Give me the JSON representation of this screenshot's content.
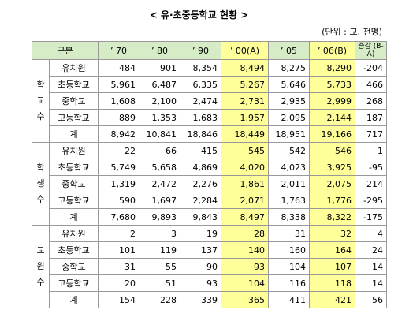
{
  "title": "< 유·초중등학교 현황 >",
  "unit": "(단위 : 교, 천명)",
  "header": [
    "구분",
    "’ 70",
    "’ 80",
    "’ 90",
    "’ 00(A)",
    "’ 05",
    "’ 06(B)",
    "증감 (B-A)"
  ],
  "groups": [
    {
      "label": "학교수",
      "rows": [
        {
          "name": "유치원",
          "values": [
            "484",
            "901",
            "8,354",
            "8,494",
            "8,275",
            "8,290",
            "-204"
          ]
        },
        {
          "name": "초등학교",
          "values": [
            "5,961",
            "6,487",
            "6,335",
            "5,267",
            "5,646",
            "5,733",
            "466"
          ]
        },
        {
          "name": "중학교",
          "values": [
            "1,608",
            "2,100",
            "2,474",
            "2,731",
            "2,935",
            "2,999",
            "268"
          ]
        },
        {
          "name": "고등학교",
          "values": [
            "889",
            "1,353",
            "1,683",
            "1,957",
            "2,095",
            "2,144",
            "187"
          ]
        },
        {
          "name": "계",
          "values": [
            "8,942",
            "10,841",
            "18,846",
            "18,449",
            "18,951",
            "19,166",
            "717"
          ]
        }
      ]
    },
    {
      "label": "학생수",
      "rows": [
        {
          "name": "유치원",
          "values": [
            "22",
            "66",
            "415",
            "545",
            "542",
            "546",
            "1"
          ]
        },
        {
          "name": "초등학교",
          "values": [
            "5,749",
            "5,658",
            "4,869",
            "4,020",
            "4,023",
            "3,925",
            "-95"
          ]
        },
        {
          "name": "중학교",
          "values": [
            "1,319",
            "2,472",
            "2,276",
            "1,861",
            "2,011",
            "2,075",
            "214"
          ]
        },
        {
          "name": "고등학교",
          "values": [
            "590",
            "1,697",
            "2,284",
            "2,071",
            "1,763",
            "1,776",
            "-295"
          ]
        },
        {
          "name": "계",
          "values": [
            "7,680",
            "9,893",
            "9,843",
            "8,497",
            "8,338",
            "8,322",
            "-175"
          ]
        }
      ]
    },
    {
      "label": "교원수",
      "rows": [
        {
          "name": "유치원",
          "values": [
            "2",
            "3",
            "19",
            "28",
            "31",
            "32",
            "4"
          ]
        },
        {
          "name": "초등학교",
          "values": [
            "101",
            "119",
            "137",
            "140",
            "160",
            "164",
            "24"
          ]
        },
        {
          "name": "중학교",
          "values": [
            "31",
            "55",
            "90",
            "93",
            "104",
            "107",
            "14"
          ]
        },
        {
          "name": "고등학교",
          "values": [
            "20",
            "51",
            "93",
            "104",
            "116",
            "118",
            "14"
          ]
        },
        {
          "name": "계",
          "values": [
            "154",
            "228",
            "339",
            "365",
            "411",
            "421",
            "56"
          ]
        }
      ]
    }
  ]
}
